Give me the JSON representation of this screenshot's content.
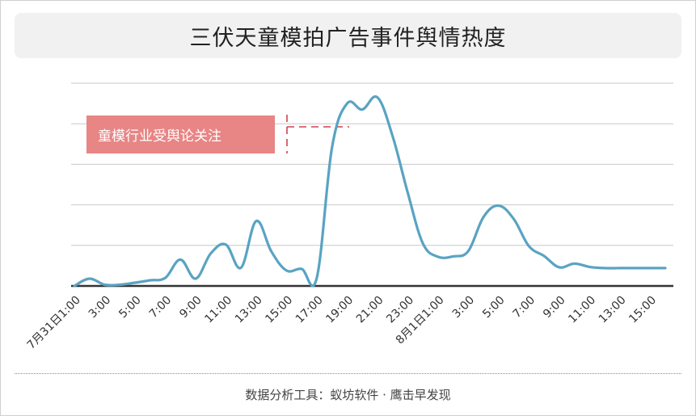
{
  "title": "三伏天童模拍广告事件舆情热度",
  "annotation": {
    "text": "童模行业受舆论关注"
  },
  "footer": "数据分析工具：蚁坊软件 · 鹰击早发现",
  "colors": {
    "line": "#5aa3c2",
    "annotation_bg": "#e88585",
    "annotation_dash": "#d04050",
    "grid": "#c8c8c8",
    "axis": "#333333"
  },
  "chart_data": {
    "type": "line",
    "title": "三伏天童模拍广告事件舆情热度",
    "xlabel": "",
    "ylabel": "",
    "grid": true,
    "legend": "none",
    "ylim": [
      0,
      5
    ],
    "x_tick_labels": [
      "7月31日1:00",
      "3:00",
      "5:00",
      "7:00",
      "9:00",
      "11:00",
      "13:00",
      "15:00",
      "17:00",
      "19:00",
      "21:00",
      "23:00",
      "8月1日1:00",
      "3:00",
      "5:00",
      "7:00",
      "9:00",
      "11:00",
      "13:00",
      "15:00"
    ],
    "x": [
      0,
      1,
      2,
      3,
      4,
      5,
      6,
      7,
      8,
      9,
      10,
      11,
      12,
      13,
      14,
      15,
      16,
      17,
      18,
      19,
      20,
      21,
      22,
      23,
      24,
      25,
      26,
      27,
      28,
      29,
      30,
      31,
      32,
      33,
      34,
      35,
      36,
      37,
      38,
      39
    ],
    "series": [
      {
        "values": [
          0.0,
          0.18,
          0.03,
          0.03,
          0.08,
          0.14,
          0.2,
          0.65,
          0.18,
          0.8,
          1.02,
          0.45,
          1.6,
          0.85,
          0.38,
          0.42,
          0.2,
          3.4,
          4.5,
          4.35,
          4.65,
          3.7,
          2.3,
          1.05,
          0.72,
          0.73,
          0.86,
          1.7,
          1.98,
          1.65,
          0.98,
          0.74,
          0.46,
          0.55,
          0.47,
          0.44,
          0.44,
          0.44,
          0.44,
          0.44
        ]
      }
    ]
  }
}
